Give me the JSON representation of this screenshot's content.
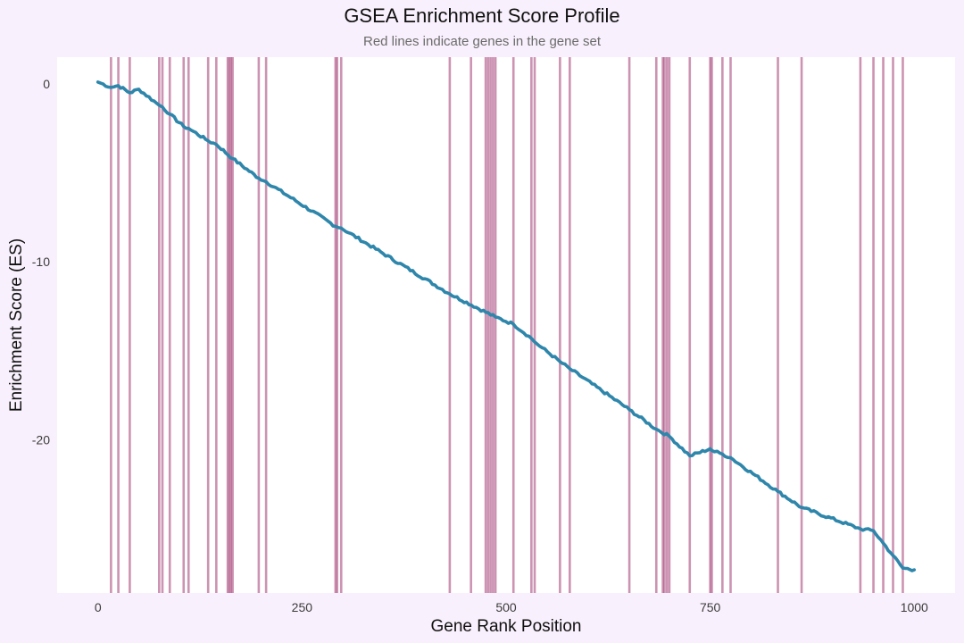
{
  "chart_data": {
    "type": "line",
    "title": "GSEA Enrichment Score Profile",
    "subtitle": "Red lines indicate genes in the gene set",
    "xlabel": "Gene Rank Position",
    "ylabel": "Enrichment Score (ES)",
    "xlim": [
      -50,
      1050
    ],
    "ylim": [
      -28.6,
      1.5
    ],
    "xticks": [
      0,
      250,
      500,
      750,
      1000
    ],
    "yticks": [
      0,
      -10,
      -20
    ],
    "grid": false,
    "colors": {
      "line": "#2e86ab",
      "hits": "#a23b72",
      "panel": "#ffffff",
      "background": "#f8f0fc"
    },
    "gene_set_hits": [
      16,
      25,
      39,
      75,
      79,
      88,
      105,
      111,
      135,
      145,
      159,
      161,
      163,
      165,
      197,
      206,
      291,
      293,
      298,
      431,
      457,
      475,
      478,
      481,
      484,
      487,
      509,
      531,
      535,
      566,
      578,
      651,
      684,
      692,
      694,
      697,
      700,
      725,
      750,
      752,
      765,
      775,
      833,
      862,
      934,
      950,
      962,
      974,
      986
    ],
    "series": [
      {
        "x": [
          0,
          16,
          25,
          39,
          50,
          75,
          79,
          88,
          105,
          111,
          135,
          145,
          165,
          197,
          206,
          291,
          298,
          431,
          487,
          509,
          531,
          535,
          566,
          578,
          651,
          684,
          700,
          725,
          750,
          752,
          765,
          775,
          833,
          862,
          934,
          950,
          962,
          974,
          986,
          1000
        ],
        "values": [
          0.1,
          -0.2,
          -0.1,
          -0.5,
          -0.3,
          -1.2,
          -1.3,
          -1.7,
          -2.4,
          -2.5,
          -3.2,
          -3.4,
          -4.2,
          -5.3,
          -5.5,
          -8.0,
          -8.1,
          -11.8,
          -13.1,
          -13.5,
          -14.3,
          -14.5,
          -15.6,
          -16.0,
          -18.3,
          -19.4,
          -19.8,
          -20.9,
          -20.5,
          -20.6,
          -20.8,
          -21.0,
          -22.9,
          -23.8,
          -25.0,
          -25.1,
          -25.8,
          -26.5,
          -27.2,
          -27.3
        ]
      }
    ]
  }
}
